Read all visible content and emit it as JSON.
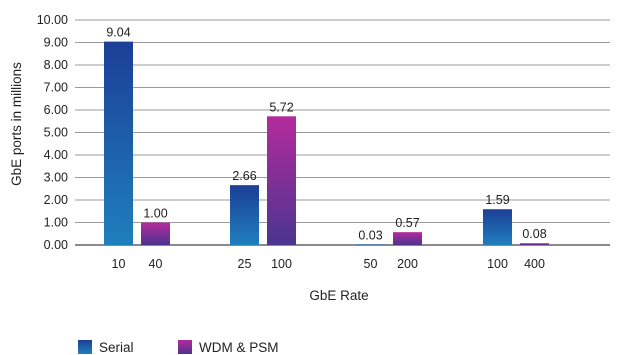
{
  "chart_data": {
    "type": "bar",
    "ylabel": "GbE ports in millions",
    "xlabel": "GbE Rate",
    "ylim": [
      0,
      10
    ],
    "yticks": [
      "0.00",
      "1.00",
      "2.00",
      "3.00",
      "4.00",
      "5.00",
      "6.00",
      "7.00",
      "8.00",
      "9.00",
      "10.00"
    ],
    "grid": true,
    "legend_position": "bottom-left",
    "groups": [
      {
        "serial_label": "10",
        "wdm_label": "40"
      },
      {
        "serial_label": "25",
        "wdm_label": "100"
      },
      {
        "serial_label": "50",
        "wdm_label": "200"
      },
      {
        "serial_label": "100",
        "wdm_label": "400"
      }
    ],
    "series": [
      {
        "name": "Serial",
        "values": [
          9.04,
          2.66,
          0.03,
          1.59
        ],
        "value_labels": [
          "9.04",
          "2.66",
          "0.03",
          "1.59"
        ],
        "color_top": "#1c3f96",
        "color_bottom": "#1f7fbd"
      },
      {
        "name": "WDM & PSM",
        "values": [
          1.0,
          5.72,
          0.57,
          0.08
        ],
        "value_labels": [
          "1.00",
          "5.72",
          "0.57",
          "0.08"
        ],
        "color_top": "#b42a9c",
        "color_bottom": "#4a3590"
      }
    ]
  }
}
